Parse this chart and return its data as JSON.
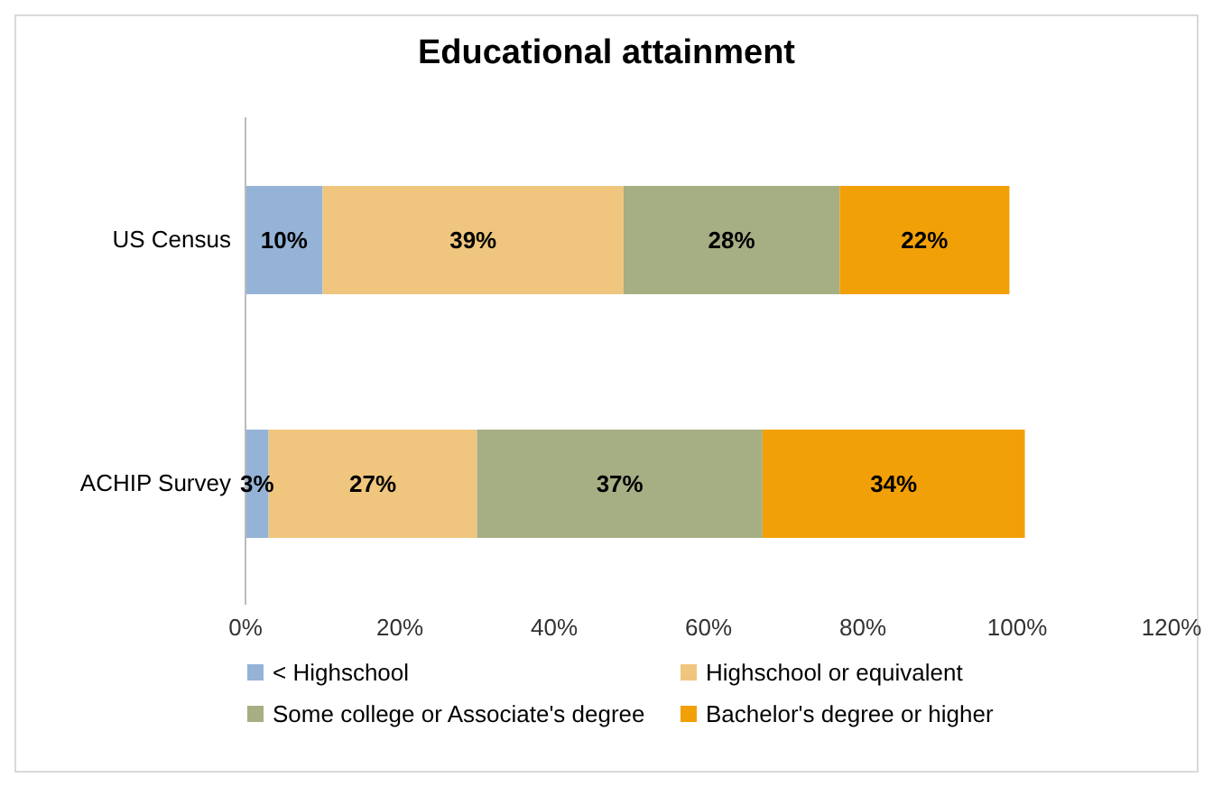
{
  "chart_data": {
    "type": "bar",
    "title": "Educational attainment",
    "orientation": "horizontal",
    "stacked": true,
    "categories": [
      "US Census",
      "ACHIP Survey"
    ],
    "series": [
      {
        "name": "< Highschool",
        "color": "#95b3d7",
        "values": [
          10,
          3
        ],
        "value_labels": [
          "10%",
          "3%"
        ]
      },
      {
        "name": "Highschool or equivalent",
        "color": "#f0c67e",
        "values": [
          39,
          27
        ],
        "value_labels": [
          "39%",
          "27%"
        ]
      },
      {
        "name": "Some college or Associate's degree",
        "color": "#a6ae84",
        "values": [
          28,
          37
        ],
        "value_labels": [
          "28%",
          "37%"
        ]
      },
      {
        "name": "Bachelor's degree or higher",
        "color": "#f2a007",
        "values": [
          22,
          34
        ],
        "value_labels": [
          "22%",
          "34%"
        ]
      }
    ],
    "xlim": [
      0,
      120
    ],
    "xticks": [
      {
        "value": 0,
        "label": "0%"
      },
      {
        "value": 20,
        "label": "20%"
      },
      {
        "value": 40,
        "label": "40%"
      },
      {
        "value": 60,
        "label": "60%"
      },
      {
        "value": 80,
        "label": "80%"
      },
      {
        "value": 100,
        "label": "100%"
      },
      {
        "value": 120,
        "label": "120%"
      }
    ],
    "grid": false,
    "legend": "bottom"
  }
}
